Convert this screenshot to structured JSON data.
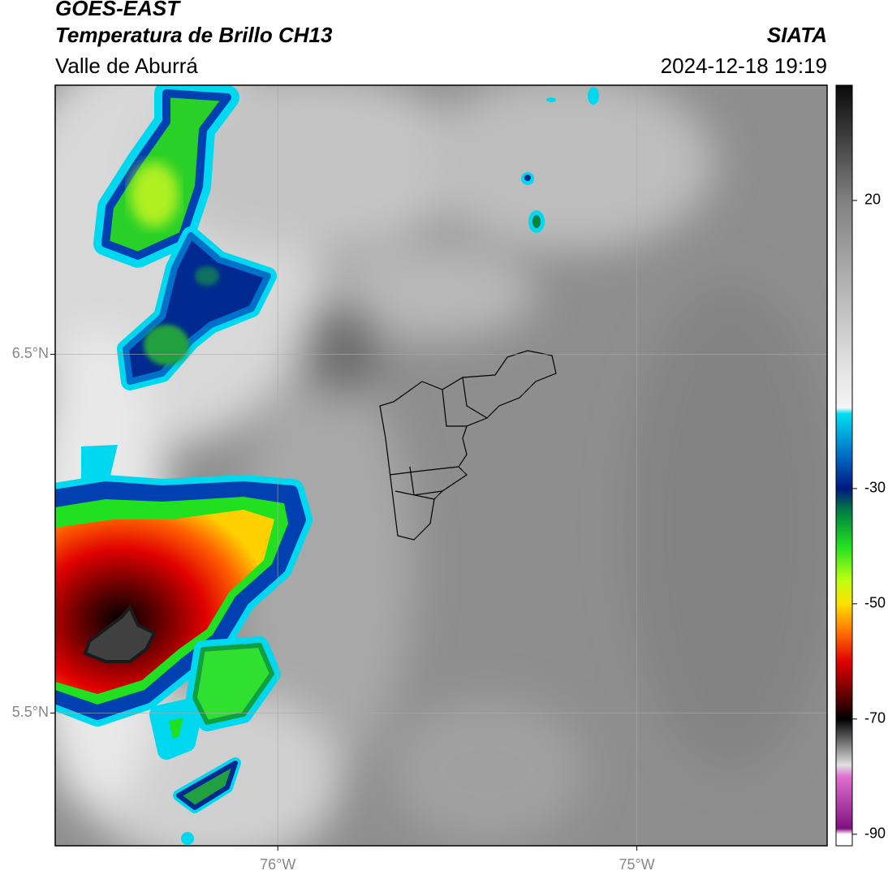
{
  "header": {
    "title": "GOES-EAST",
    "subtitle": "Temperatura de Brillo CH13",
    "source": "SIATA",
    "region": "Valle de Aburrá",
    "timestamp": "2024-12-18 19:19"
  },
  "map": {
    "lat_lim": [
      5.13,
      7.25
    ],
    "lon_lim": [
      -76.62,
      -74.47
    ],
    "lat_ticks": [
      {
        "value": 6.5,
        "label": "6.5°N"
      },
      {
        "value": 5.5,
        "label": "5.5°N"
      }
    ],
    "lon_ticks": [
      {
        "value": -76,
        "label": "76°W"
      },
      {
        "value": -75,
        "label": "75°W"
      }
    ],
    "grid": true
  },
  "colorbar": {
    "lim": [
      -92,
      40
    ],
    "ticks": [
      20,
      -30,
      -50,
      -70,
      -90
    ],
    "stops": [
      {
        "value": 40,
        "color": "#0a0a0a"
      },
      {
        "value": 30,
        "color": "#444444"
      },
      {
        "value": 20,
        "color": "#808080"
      },
      {
        "value": 5,
        "color": "#b4b4b4"
      },
      {
        "value": -10,
        "color": "#e6e6e6"
      },
      {
        "value": -16,
        "color": "#f4f4f4"
      },
      {
        "value": -17,
        "color": "#00e0f0"
      },
      {
        "value": -24,
        "color": "#0070c8"
      },
      {
        "value": -30,
        "color": "#001880"
      },
      {
        "value": -34,
        "color": "#008040"
      },
      {
        "value": -40,
        "color": "#20e020"
      },
      {
        "value": -46,
        "color": "#c0ff10"
      },
      {
        "value": -50,
        "color": "#ffe000"
      },
      {
        "value": -55,
        "color": "#ff7000"
      },
      {
        "value": -60,
        "color": "#e00000"
      },
      {
        "value": -66,
        "color": "#600000"
      },
      {
        "value": -70,
        "color": "#000000"
      },
      {
        "value": -74,
        "color": "#707070"
      },
      {
        "value": -78,
        "color": "#e0e0e0"
      },
      {
        "value": -80,
        "color": "#e070d0"
      },
      {
        "value": -89,
        "color": "#801080"
      },
      {
        "value": -90,
        "color": "#ffffff"
      }
    ]
  }
}
